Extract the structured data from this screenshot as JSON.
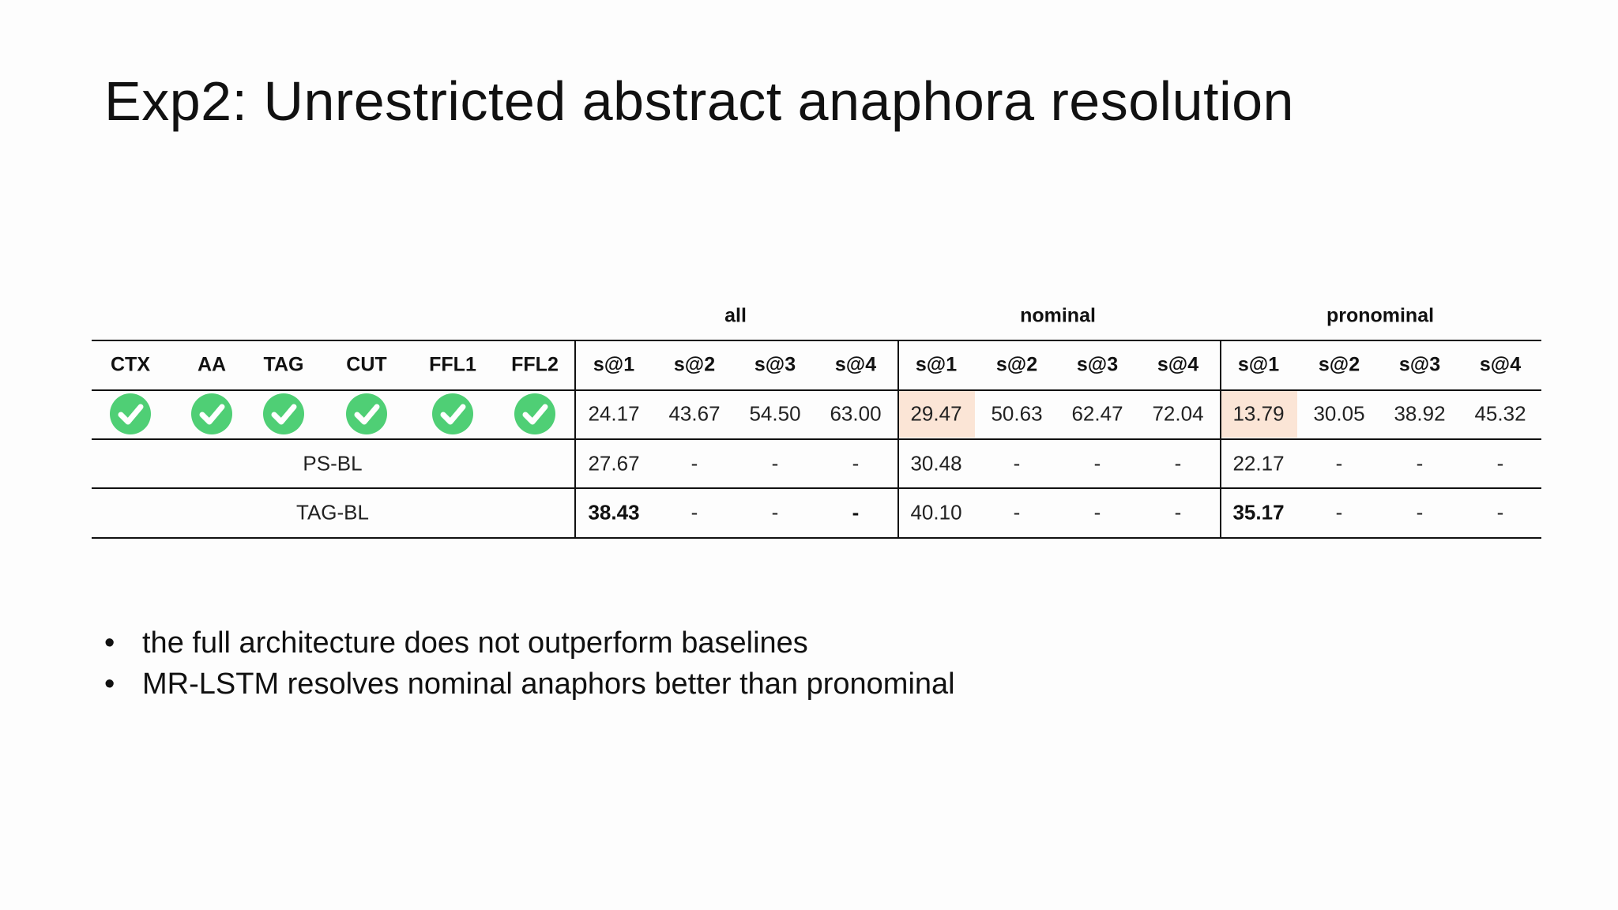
{
  "slide": {
    "title": "Exp2: Unrestricted abstract anaphora resolution",
    "table": {
      "groups": [
        "all",
        "nominal",
        "pronominal"
      ],
      "feature_headers": [
        "CTX",
        "AA",
        "TAG",
        "CUT",
        "FFL1",
        "FFL2"
      ],
      "metric_headers": [
        "s@1",
        "s@2",
        "s@3",
        "s@4",
        "s@1",
        "s@2",
        "s@3",
        "s@4",
        "s@1",
        "s@2",
        "s@3",
        "s@4"
      ],
      "rows": [
        {
          "label": "",
          "features": [
            "check-circle-icon",
            "check-circle-icon",
            "check-circle-icon",
            "check-circle-icon",
            "check-circle-icon",
            "check-circle-icon"
          ],
          "values": [
            "24.17",
            "43.67",
            "54.50",
            "63.00",
            "29.47",
            "50.63",
            "62.47",
            "72.04",
            "13.79",
            "30.05",
            "38.92",
            "45.32"
          ],
          "bold": [],
          "highlight": [
            4,
            8
          ]
        },
        {
          "label": "PS-BL",
          "values": [
            "27.67",
            "-",
            "-",
            "-",
            "30.48",
            "-",
            "-",
            "-",
            "22.17",
            "-",
            "-",
            "-"
          ],
          "bold": [],
          "highlight": []
        },
        {
          "label": "TAG-BL",
          "values": [
            "38.43",
            "-",
            "-",
            "-",
            "40.10",
            "-",
            "-",
            "-",
            "35.17",
            "-",
            "-",
            "-"
          ],
          "bold": [
            0,
            3,
            8
          ],
          "highlight": []
        }
      ],
      "colors": {
        "check": "#4fcf75",
        "highlight": "#fbe5d6"
      }
    },
    "bullets": [
      "the full architecture does not outperform baselines",
      "MR-LSTM resolves nominal anaphors better than pronominal"
    ],
    "bullet_glyph": "•"
  }
}
